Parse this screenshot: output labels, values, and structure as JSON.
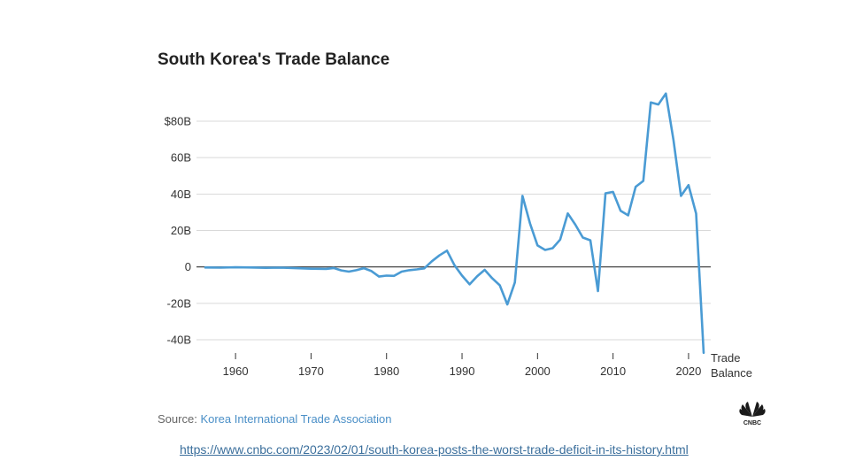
{
  "title": "South Korea's Trade Balance",
  "source": {
    "prefix": "Source:",
    "name": "Korea International Trade Association"
  },
  "url": "https://www.cnbc.com/2023/02/01/south-korea-posts-the-worst-trade-deficit-in-its-history.html",
  "logo": {
    "icon": "cnbc-peacock-icon",
    "text": "CNBC"
  },
  "colors": {
    "line": "#4a9bd4",
    "grid": "#d9d9d9",
    "zero": "#333333",
    "accent": "#4a8fc7"
  },
  "chart_data": {
    "type": "line",
    "title": "South Korea's Trade Balance",
    "xlabel": "",
    "ylabel": "",
    "xlim": [
      1956,
      2022
    ],
    "ylim": [
      -40,
      80
    ],
    "y_ticks": [
      {
        "value": 80,
        "label": "$80B"
      },
      {
        "value": 60,
        "label": "60B"
      },
      {
        "value": 40,
        "label": "40B"
      },
      {
        "value": 20,
        "label": "20B"
      },
      {
        "value": 0,
        "label": "0"
      },
      {
        "value": -20,
        "label": "-20B"
      },
      {
        "value": -40,
        "label": "-40B"
      }
    ],
    "x_ticks": [
      {
        "value": 1960,
        "label": "1960"
      },
      {
        "value": 1970,
        "label": "1970"
      },
      {
        "value": 1980,
        "label": "1980"
      },
      {
        "value": 1990,
        "label": "1990"
      },
      {
        "value": 2000,
        "label": "2000"
      },
      {
        "value": 2010,
        "label": "2010"
      },
      {
        "value": 2020,
        "label": "2020"
      }
    ],
    "grid": true,
    "legend": {
      "position": "bottom-right",
      "lines": [
        "Trade",
        "Balance"
      ]
    },
    "series": [
      {
        "name": "Trade Balance",
        "x": [
          1956,
          1958,
          1960,
          1962,
          1964,
          1966,
          1968,
          1970,
          1972,
          1973,
          1974,
          1975,
          1976,
          1977,
          1978,
          1979,
          1980,
          1981,
          1982,
          1983,
          1984,
          1985,
          1986,
          1987,
          1988,
          1989,
          1990,
          1991,
          1992,
          1993,
          1994,
          1995,
          1996,
          1997,
          1998,
          1999,
          2000,
          2001,
          2002,
          2003,
          2004,
          2005,
          2006,
          2007,
          2008,
          2009,
          2010,
          2011,
          2012,
          2013,
          2014,
          2015,
          2016,
          2017,
          2018,
          2019,
          2020,
          2021,
          2022
        ],
        "values": [
          -0.3,
          -0.4,
          -0.2,
          -0.3,
          -0.5,
          -0.4,
          -0.7,
          -1.0,
          -1.1,
          -0.6,
          -1.9,
          -2.6,
          -1.8,
          -0.7,
          -2.3,
          -5.3,
          -4.8,
          -4.9,
          -2.6,
          -1.8,
          -1.4,
          -0.8,
          3.1,
          6.3,
          8.9,
          0.9,
          -4.8,
          -9.6,
          -5.1,
          -1.6,
          -6.3,
          -10.1,
          -20.6,
          -8.5,
          39.0,
          23.9,
          11.8,
          9.3,
          10.3,
          15.0,
          29.4,
          23.2,
          16.1,
          14.6,
          -13.3,
          40.4,
          41.2,
          30.8,
          28.3,
          44.0,
          47.2,
          90.3,
          89.2,
          95.2,
          69.7,
          39.0,
          44.9,
          29.3,
          -47.2
        ]
      }
    ]
  }
}
